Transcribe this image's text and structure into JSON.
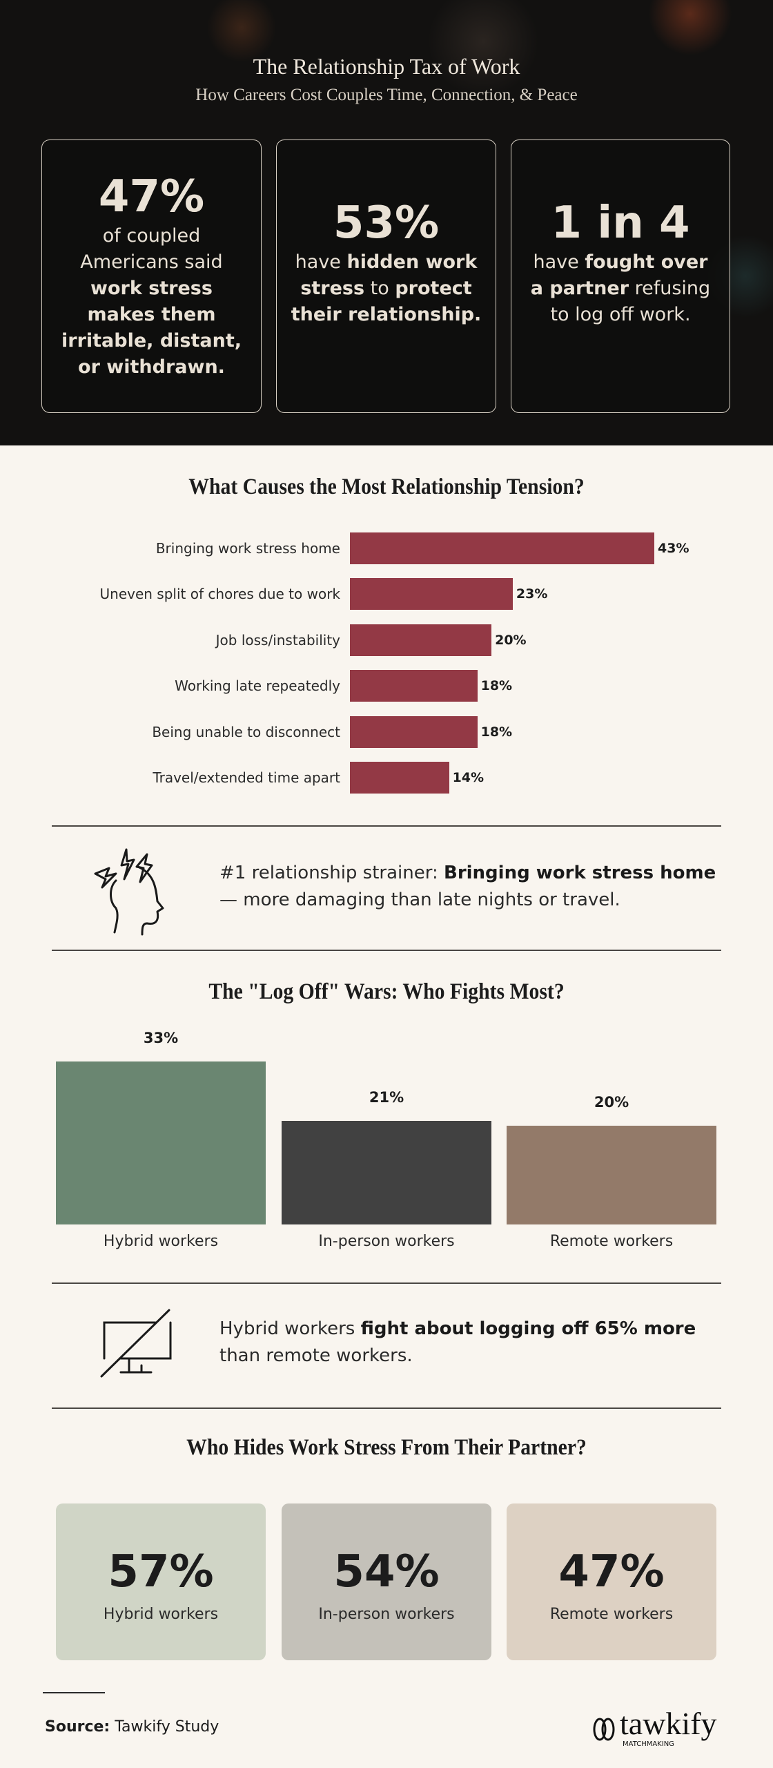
{
  "header": {
    "title": "The Relationship Tax of Work",
    "subtitle": "How Careers Cost Couples Time, Connection, & Peace"
  },
  "stats": [
    {
      "big": "47%",
      "parts": [
        {
          "t": "of coupled Americans said ",
          "b": false
        },
        {
          "t": "work stress makes them irritable, distant, or withdrawn.",
          "b": true
        }
      ]
    },
    {
      "big": "53%",
      "parts": [
        {
          "t": "have ",
          "b": false
        },
        {
          "t": "hidden work stress",
          "b": true
        },
        {
          "t": " to ",
          "b": false
        },
        {
          "t": "protect their relationship.",
          "b": true
        }
      ]
    },
    {
      "big": "1 in 4",
      "parts": [
        {
          "t": "have ",
          "b": false
        },
        {
          "t": "fought over a partner",
          "b": true
        },
        {
          "t": " refusing to log off work.",
          "b": false
        }
      ]
    }
  ],
  "chart_data": [
    {
      "type": "bar",
      "orientation": "horizontal",
      "title": "What Causes the Most Relationship Tension?",
      "categories": [
        "Bringing work stress home",
        "Uneven split of chores due to work",
        "Job loss/instability",
        "Working late repeatedly",
        "Being unable to disconnect",
        "Travel/extended time apart"
      ],
      "values": [
        43,
        23,
        20,
        18,
        18,
        14
      ],
      "data_labels": [
        "43%",
        "23%",
        "20%",
        "18%",
        "18%",
        "14%"
      ],
      "color": "#933945",
      "unit": "%"
    },
    {
      "type": "bar",
      "orientation": "vertical",
      "title": "The \"Log Off\" Wars: Who Fights Most?",
      "categories": [
        "Hybrid workers",
        "In-person workers",
        "Remote workers"
      ],
      "values": [
        33,
        21,
        20
      ],
      "data_labels": [
        "33%",
        "21%",
        "20%"
      ],
      "colors": [
        "#6a8671",
        "#414141",
        "#937a69"
      ],
      "unit": "%"
    },
    {
      "type": "table",
      "title": "Who Hides Work Stress From Their Partner?",
      "categories": [
        "Hybrid workers",
        "In-person workers",
        "Remote workers"
      ],
      "values": [
        57,
        54,
        47
      ],
      "data_labels": [
        "57%",
        "54%",
        "47%"
      ],
      "colors": [
        "#d0d5c6",
        "#c4c1b9",
        "#ddd1c3"
      ],
      "unit": "%"
    }
  ],
  "insight1": {
    "icon": "stressed-head-icon",
    "pre": "#1 relationship strainer: ",
    "bold": "Bringing work stress home",
    "post": " — more damaging than late nights or travel."
  },
  "insight2": {
    "icon": "monitor-off-icon",
    "pre": "Hybrid workers ",
    "bold": "fight about logging off 65% more",
    "post": " than remote workers."
  },
  "footer": {
    "source_label": "Source:",
    "source_value": "Tawkify Study",
    "logo_text": "tawkify",
    "logo_sub": "MATCHMAKING"
  }
}
